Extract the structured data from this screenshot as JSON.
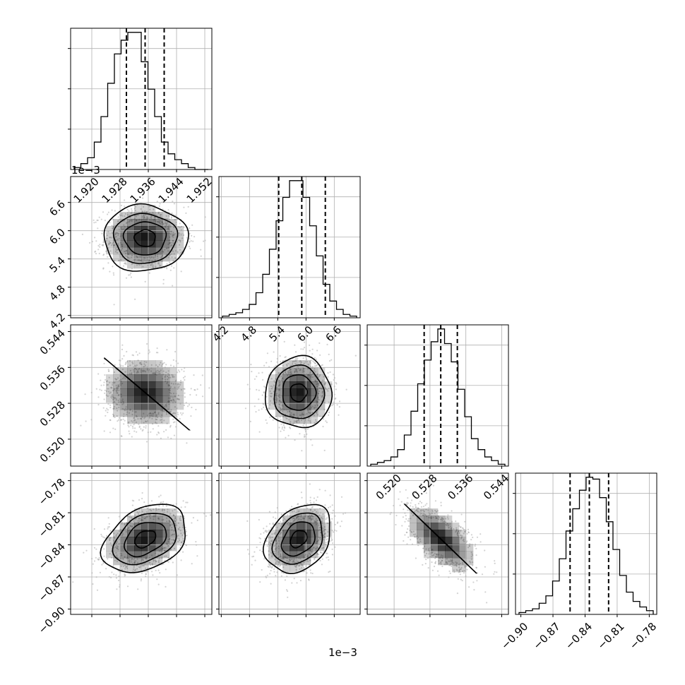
{
  "chart_data": {
    "type": "corner",
    "offset_labels": [
      "1e−3",
      "1e−3"
    ],
    "columns": [
      {
        "lim": [
          1.914,
          1.954
        ],
        "ticks": [
          1.92,
          1.928,
          1.936,
          1.944,
          1.952
        ],
        "tick_labels": [
          "1.920",
          "1.928",
          "1.936",
          "1.944",
          "1.952"
        ]
      },
      {
        "lim": [
          4.15,
          7.15
        ],
        "ticks": [
          4.2,
          4.8,
          5.4,
          6.0,
          6.6
        ],
        "tick_labels": [
          "4.2",
          "4.8",
          "5.4",
          "6.0",
          "6.6"
        ]
      },
      {
        "lim": [
          0.514,
          0.5455
        ],
        "ticks": [
          0.52,
          0.528,
          0.536,
          0.544
        ],
        "tick_labels": [
          "0.520",
          "0.528",
          "0.536",
          "0.544"
        ]
      },
      {
        "lim": [
          -0.905,
          -0.773
        ],
        "ticks": [
          -0.9,
          -0.87,
          -0.84,
          -0.81,
          -0.78
        ],
        "tick_labels": [
          "−0.90",
          "−0.87",
          "−0.84",
          "−0.81",
          "−0.78"
        ]
      }
    ],
    "histograms": [
      {
        "counts": [
          1,
          3,
          6,
          14,
          27,
          44,
          59,
          66,
          70,
          70,
          55,
          41,
          27,
          14,
          8,
          5,
          3,
          1,
          0,
          0
        ],
        "quantile_lines": [
          1.9298,
          1.9351,
          1.9405
        ]
      },
      {
        "counts": [
          1,
          2,
          3,
          5,
          8,
          15,
          26,
          41,
          58,
          72,
          82,
          82,
          72,
          55,
          37,
          20,
          10,
          5,
          2,
          1
        ],
        "quantile_lines": [
          5.42,
          5.91,
          6.41
        ]
      },
      {
        "counts": [
          1,
          2,
          3,
          5,
          9,
          17,
          30,
          45,
          58,
          68,
          75,
          67,
          57,
          42,
          27,
          15,
          9,
          5,
          3,
          1
        ],
        "quantile_lines": [
          0.5267,
          0.5304,
          0.5341
        ]
      },
      {
        "counts": [
          1,
          2,
          3,
          6,
          10,
          18,
          30,
          45,
          57,
          67,
          74,
          73,
          63,
          50,
          35,
          21,
          12,
          7,
          4,
          2
        ],
        "quantile_lines": [
          -0.854,
          -0.836,
          -0.818
        ]
      }
    ],
    "pairs": [
      {
        "row": 1,
        "col": 0,
        "mean": [
          1.9351,
          5.84
        ],
        "sd": [
          0.0054,
          0.32
        ],
        "rho": 0.0
      },
      {
        "row": 2,
        "col": 0,
        "mean": [
          1.9351,
          0.5304
        ],
        "sd": [
          0.0054,
          0.0036
        ],
        "rho": -0.05
      },
      {
        "row": 2,
        "col": 1,
        "mean": [
          5.84,
          0.5304
        ],
        "sd": [
          0.32,
          0.0036
        ],
        "rho": 0.0
      },
      {
        "row": 3,
        "col": 0,
        "mean": [
          1.9351,
          -0.8345
        ],
        "sd": [
          0.0054,
          0.0145
        ],
        "rho": 0.35
      },
      {
        "row": 3,
        "col": 1,
        "mean": [
          5.84,
          -0.8345
        ],
        "sd": [
          0.32,
          0.0145
        ],
        "rho": 0.3
      },
      {
        "row": 3,
        "col": 2,
        "mean": [
          0.5304,
          -0.8345
        ],
        "sd": [
          0.0036,
          0.0145
        ],
        "rho": -0.6
      }
    ],
    "contour_levels_sigma": [
      0.5,
      1.0,
      1.5,
      2.0
    ],
    "grid": true,
    "colors": {
      "hist": "#000000",
      "density": "#000000",
      "scatter": "#9e9e9e",
      "grid": "#b0b0b0"
    }
  }
}
